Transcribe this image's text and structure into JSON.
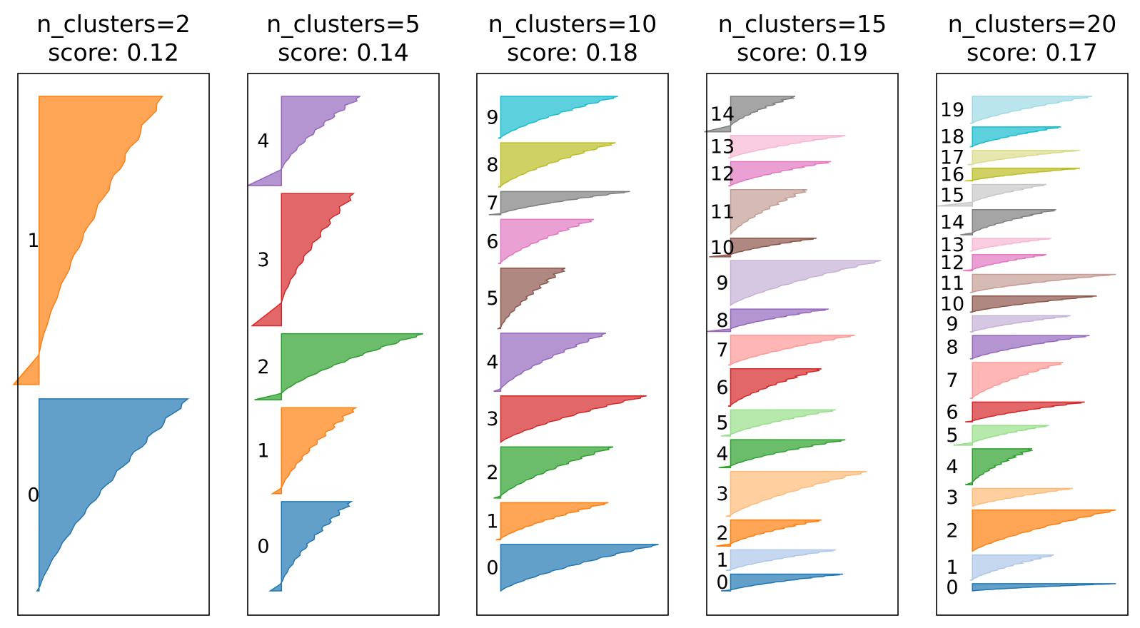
{
  "chart_data": [
    {
      "type": "area",
      "title": "n_clusters=2",
      "subtitle": "score: 0.12",
      "n_clusters": 2,
      "score": 0.12,
      "xlim": [
        -0.1,
        0.8
      ],
      "clusters": [
        {
          "label": "0",
          "size": 2.0,
          "min": -0.01,
          "max": 0.7
        },
        {
          "label": "1",
          "size": 3.0,
          "min": -0.12,
          "max": 0.58
        }
      ]
    },
    {
      "type": "area",
      "title": "n_clusters=5",
      "subtitle": "score: 0.14",
      "n_clusters": 5,
      "score": 0.14,
      "xlim": [
        -0.15,
        0.7
      ],
      "clusters": [
        {
          "label": "0",
          "size": 1.35,
          "min": -0.05,
          "max": 0.31
        },
        {
          "label": "1",
          "size": 1.3,
          "min": -0.04,
          "max": 0.33
        },
        {
          "label": "2",
          "size": 1.0,
          "min": -0.12,
          "max": 0.63
        },
        {
          "label": "3",
          "size": 2.0,
          "min": -0.13,
          "max": 0.32
        },
        {
          "label": "4",
          "size": 1.35,
          "min": -0.15,
          "max": 0.35
        }
      ]
    },
    {
      "type": "area",
      "title": "n_clusters=10",
      "subtitle": "score: 0.18",
      "n_clusters": 10,
      "score": 0.18,
      "xlim": [
        -0.1,
        0.7
      ],
      "clusters": [
        {
          "label": "0",
          "size": 1.0,
          "min": 0.0,
          "max": 0.66
        },
        {
          "label": "1",
          "size": 0.8,
          "min": -0.02,
          "max": 0.45
        },
        {
          "label": "2",
          "size": 1.1,
          "min": -0.03,
          "max": 0.47
        },
        {
          "label": "3",
          "size": 1.0,
          "min": 0.0,
          "max": 0.61
        },
        {
          "label": "4",
          "size": 1.25,
          "min": -0.03,
          "max": 0.44
        },
        {
          "label": "5",
          "size": 1.3,
          "min": -0.01,
          "max": 0.27
        },
        {
          "label": "6",
          "size": 0.95,
          "min": -0.01,
          "max": 0.39
        },
        {
          "label": "7",
          "size": 0.5,
          "min": -0.05,
          "max": 0.54
        },
        {
          "label": "8",
          "size": 0.95,
          "min": -0.01,
          "max": 0.48
        },
        {
          "label": "9",
          "size": 0.9,
          "min": -0.01,
          "max": 0.49
        }
      ]
    },
    {
      "type": "area",
      "title": "n_clusters=15",
      "subtitle": "score: 0.19",
      "n_clusters": 15,
      "score": 0.19,
      "xlim": [
        -0.1,
        0.7
      ],
      "clusters": [
        {
          "label": "0",
          "size": 0.45,
          "min": -0.04,
          "max": 0.47
        },
        {
          "label": "1",
          "size": 0.55,
          "min": -0.02,
          "max": 0.44
        },
        {
          "label": "2",
          "size": 0.7,
          "min": -0.06,
          "max": 0.38
        },
        {
          "label": "3",
          "size": 1.2,
          "min": -0.02,
          "max": 0.57
        },
        {
          "label": "4",
          "size": 0.75,
          "min": -0.05,
          "max": 0.48
        },
        {
          "label": "5",
          "size": 0.7,
          "min": -0.04,
          "max": 0.44
        },
        {
          "label": "6",
          "size": 1.0,
          "min": -0.01,
          "max": 0.38
        },
        {
          "label": "7",
          "size": 0.8,
          "min": -0.01,
          "max": 0.52
        },
        {
          "label": "8",
          "size": 0.6,
          "min": -0.1,
          "max": 0.41
        },
        {
          "label": "9",
          "size": 1.2,
          "min": 0.0,
          "max": 0.63
        },
        {
          "label": "10",
          "size": 0.5,
          "min": -0.09,
          "max": 0.36
        },
        {
          "label": "11",
          "size": 1.2,
          "min": 0.0,
          "max": 0.32
        },
        {
          "label": "12",
          "size": 0.65,
          "min": -0.01,
          "max": 0.42
        },
        {
          "label": "13",
          "size": 0.6,
          "min": -0.01,
          "max": 0.48
        },
        {
          "label": "14",
          "size": 0.95,
          "min": -0.11,
          "max": 0.27
        }
      ]
    },
    {
      "type": "area",
      "title": "n_clusters=20",
      "subtitle": "score: 0.17",
      "n_clusters": 20,
      "score": 0.17,
      "xlim": [
        -0.15,
        0.65
      ],
      "clusters": [
        {
          "label": "0",
          "size": 0.2,
          "min": 0.0,
          "max": 0.6
        },
        {
          "label": "1",
          "size": 0.7,
          "min": -0.01,
          "max": 0.34
        },
        {
          "label": "2",
          "size": 1.15,
          "min": 0.0,
          "max": 0.6
        },
        {
          "label": "3",
          "size": 0.5,
          "min": 0.0,
          "max": 0.42
        },
        {
          "label": "4",
          "size": 1.0,
          "min": -0.03,
          "max": 0.25
        },
        {
          "label": "5",
          "size": 0.55,
          "min": -0.08,
          "max": 0.32
        },
        {
          "label": "6",
          "size": 0.55,
          "min": -0.03,
          "max": 0.47
        },
        {
          "label": "7",
          "size": 1.0,
          "min": -0.01,
          "max": 0.38
        },
        {
          "label": "8",
          "size": 0.65,
          "min": -0.01,
          "max": 0.49
        },
        {
          "label": "9",
          "size": 0.45,
          "min": -0.01,
          "max": 0.41
        },
        {
          "label": "10",
          "size": 0.45,
          "min": -0.01,
          "max": 0.52
        },
        {
          "label": "11",
          "size": 0.5,
          "min": -0.01,
          "max": 0.6
        },
        {
          "label": "12",
          "size": 0.45,
          "min": -0.04,
          "max": 0.31
        },
        {
          "label": "13",
          "size": 0.35,
          "min": -0.01,
          "max": 0.33
        },
        {
          "label": "14",
          "size": 0.7,
          "min": -0.05,
          "max": 0.35
        },
        {
          "label": "15",
          "size": 0.6,
          "min": -0.15,
          "max": 0.31
        },
        {
          "label": "16",
          "size": 0.35,
          "min": -0.03,
          "max": 0.45
        },
        {
          "label": "17",
          "size": 0.4,
          "min": -0.02,
          "max": 0.45
        },
        {
          "label": "18",
          "size": 0.55,
          "min": -0.01,
          "max": 0.37
        },
        {
          "label": "19",
          "size": 0.75,
          "min": -0.01,
          "max": 0.5
        }
      ]
    }
  ],
  "colors": [
    "#1f77b4",
    "#ff7f0e",
    "#2ca02c",
    "#d62728",
    "#9467bd",
    "#8c564b",
    "#e377c2",
    "#7f7f7f",
    "#bcbd22",
    "#17becf"
  ],
  "colors20": [
    "#1f77b4",
    "#aec7e8",
    "#ff7f0e",
    "#ffbb78",
    "#2ca02c",
    "#98df8a",
    "#d62728",
    "#ff9896",
    "#9467bd",
    "#c5b0d5",
    "#8c564b",
    "#c49c94",
    "#e377c2",
    "#f7b6d2",
    "#7f7f7f",
    "#c7c7c7",
    "#bcbd22",
    "#dbdb8d",
    "#17becf",
    "#9edae5"
  ]
}
